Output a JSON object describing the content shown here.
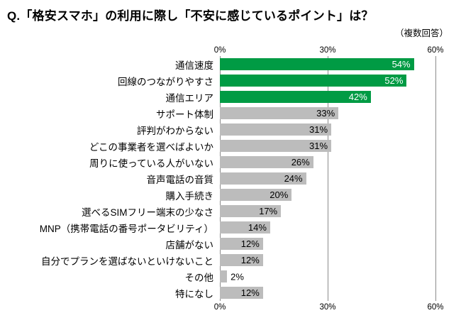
{
  "page": {
    "title": "Q.「格安スマホ」の利用に際し「不安に感じているポイント」は？",
    "note": "（複数回答）"
  },
  "chart_data": {
    "type": "bar",
    "orientation": "horizontal",
    "title": "Q.「格安スマホ」の利用に際し「不安に感じているポイント」は？",
    "subtitle": "（複数回答）",
    "categories": [
      "通信速度",
      "回線のつながりやすさ",
      "通信エリア",
      "サポート体制",
      "評判がわからない",
      "どこの事業者を選べばよいか",
      "周りに使っている人がいない",
      "音声電話の音質",
      "購入手続き",
      "選べるSIMフリー端末の少なさ",
      "MNP（携帯電話の番号ポータビリティ）",
      "店舗がない",
      "自分でプランを選ばないといけないこと",
      "その他",
      "特になし"
    ],
    "values": [
      54,
      52,
      42,
      33,
      31,
      31,
      26,
      24,
      20,
      17,
      14,
      12,
      12,
      2,
      12
    ],
    "value_suffix": "%",
    "xlim": [
      0,
      60
    ],
    "xticks": [
      {
        "label": "0%",
        "pos": 0
      },
      {
        "label": "30%",
        "pos": 50
      },
      {
        "label": "60%",
        "pos": 100
      }
    ],
    "grid": true,
    "legend": "none",
    "highlight_count": 3,
    "colors": {
      "highlight": "#009b44",
      "default": "#bcbcbc",
      "gridline": "#8c8c8c",
      "value_on_highlight": "#ffffff",
      "value_on_default": "#000000"
    },
    "outside_label_threshold": 7
  }
}
